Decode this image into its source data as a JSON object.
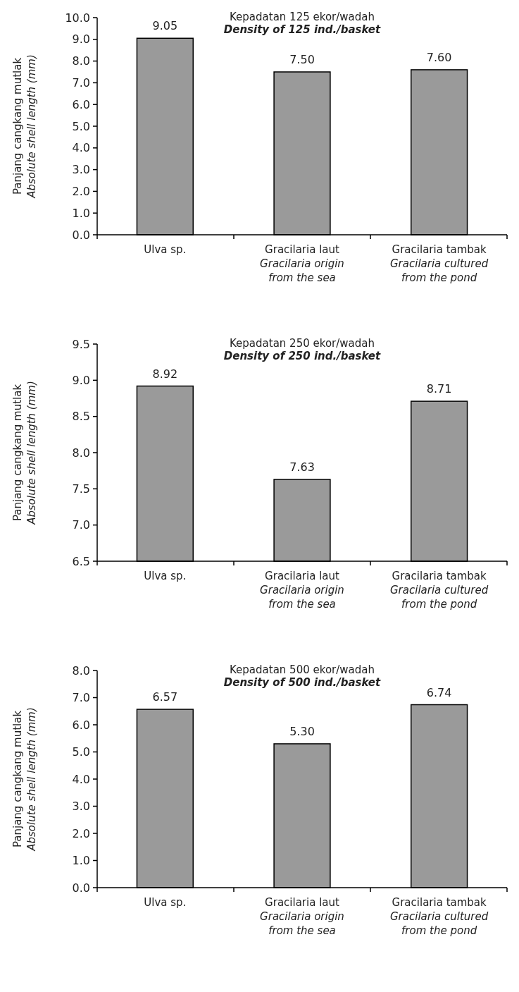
{
  "chart_data": [
    {
      "type": "bar",
      "title": "Kepadatan 125 ekor/wadah",
      "subtitle": "Density of 125 ind./basket",
      "ylabel": "Panjang cangkang mutlak\nAbsolute shell length (mm)",
      "categories": [
        "Ulva sp.",
        "Gracilaria laut\nGracilaria origin\nfrom the sea",
        "Gracilaria tambak\nGracilaria cultured\nfrom the pond"
      ],
      "values": [
        9.05,
        7.5,
        7.6
      ],
      "value_labels": [
        "9.05",
        "7.50",
        "7.60"
      ],
      "color": "#9a9a9a",
      "ylim": [
        0,
        10
      ],
      "yticks": [
        {
          "value": 0,
          "label": "0.0"
        },
        {
          "value": 1,
          "label": "1.0"
        },
        {
          "value": 2,
          "label": "2.0"
        },
        {
          "value": 3,
          "label": "3.0"
        },
        {
          "value": 4,
          "label": "4.0"
        },
        {
          "value": 5,
          "label": "5.0"
        },
        {
          "value": 6,
          "label": "6.0"
        },
        {
          "value": 7,
          "label": "7.0"
        },
        {
          "value": 8,
          "label": "8.0"
        },
        {
          "value": 9,
          "label": "9.0"
        },
        {
          "value": 10,
          "label": "10.0"
        }
      ]
    },
    {
      "type": "bar",
      "title": "Kepadatan 250 ekor/wadah",
      "subtitle": "Density of 250 ind./basket",
      "ylabel": "Panjang cangkang mutlak\nAbsolute shell length (mm)",
      "categories": [
        "Ulva sp.",
        "Gracilaria laut\nGracilaria origin\nfrom the sea",
        "Gracilaria tambak\nGracilaria cultured\nfrom the pond"
      ],
      "values": [
        8.92,
        7.63,
        8.71
      ],
      "value_labels": [
        "8.92",
        "7.63",
        "8.71"
      ],
      "color": "#9a9a9a",
      "ylim": [
        6.5,
        9.5
      ],
      "yticks": [
        6.5,
        {
          "value": 7,
          "label": "7.0"
        },
        7.5,
        {
          "value": 8,
          "label": "8.0"
        },
        8.5,
        {
          "value": 9,
          "label": "9.0"
        },
        9.5
      ]
    },
    {
      "type": "bar",
      "title": "Kepadatan 500 ekor/wadah",
      "subtitle": "Density of 500 ind./basket",
      "ylabel": "Panjang cangkang mutlak\nAbsolute shell length (mm)",
      "categories": [
        "Ulva sp.",
        "Gracilaria laut\nGracilaria origin\nfrom the sea",
        "Gracilaria tambak\nGracilaria cultured\nfrom the pond"
      ],
      "values": [
        6.57,
        5.3,
        6.74
      ],
      "value_labels": [
        "6.57",
        "5.30",
        "6.74"
      ],
      "color": "#9a9a9a",
      "ylim": [
        0,
        8
      ],
      "yticks": [
        {
          "value": 0,
          "label": "0.0"
        },
        {
          "value": 1,
          "label": "1.0"
        },
        {
          "value": 2,
          "label": "2.0"
        },
        {
          "value": 3,
          "label": "3.0"
        },
        {
          "value": 4,
          "label": "4.0"
        },
        {
          "value": 5,
          "label": "5.0"
        },
        {
          "value": 6,
          "label": "6.0"
        },
        {
          "value": 7,
          "label": "7.0"
        },
        {
          "value": 8,
          "label": "8.0"
        }
      ]
    }
  ]
}
